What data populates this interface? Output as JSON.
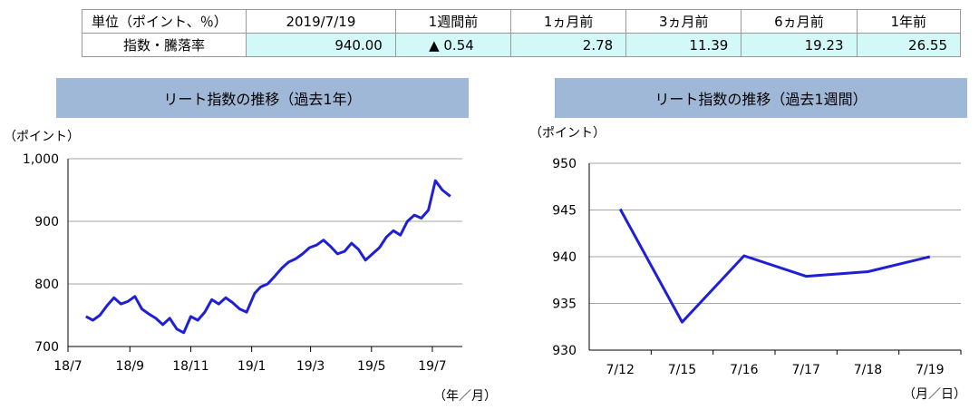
{
  "summary": {
    "unit_header": "単位（ポイント、％）",
    "columns": [
      "2019/7/19",
      "1週間前",
      "1ヵ月前",
      "3ヵ月前",
      "6ヵ月前",
      "1年前"
    ],
    "row_label": "指数・騰落率",
    "values": [
      "940.00",
      "▲ 0.54",
      "2.78",
      "11.39",
      "19.23",
      "26.55"
    ]
  },
  "colors": {
    "line": "#1f1fd6",
    "panel_title_bg": "#9fb8d8",
    "table_value_bg": "#d3f8f8",
    "grid": "#a6a6a6"
  },
  "chart_data": [
    {
      "type": "line",
      "title": "リート指数の推移（過去1年）",
      "ylabel": "（ポイント）",
      "xlabel": "（年／月）",
      "ylim": [
        700,
        1000
      ],
      "yticks": [
        "700",
        "800",
        "900",
        "1,000"
      ],
      "xticks": [
        "18/7",
        "18/9",
        "18/11",
        "19/1",
        "19/3",
        "19/5",
        "19/7"
      ],
      "series": [
        {
          "x": [
            "2018/7/19",
            "2018/7/26",
            "2018/8/2",
            "2018/8/9",
            "2018/8/16",
            "2018/8/23",
            "2018/8/30",
            "2018/9/6",
            "2018/9/13",
            "2018/9/20",
            "2018/9/27",
            "2018/10/4",
            "2018/10/11",
            "2018/10/18",
            "2018/10/25",
            "2018/11/1",
            "2018/11/8",
            "2018/11/15",
            "2018/11/22",
            "2018/11/29",
            "2018/12/6",
            "2018/12/13",
            "2018/12/20",
            "2018/12/27",
            "2019/1/4",
            "2019/1/10",
            "2019/1/17",
            "2019/1/24",
            "2019/1/31",
            "2019/2/7",
            "2019/2/14",
            "2019/2/21",
            "2019/2/28",
            "2019/3/7",
            "2019/3/14",
            "2019/3/21",
            "2019/3/28",
            "2019/4/4",
            "2019/4/11",
            "2019/4/18",
            "2019/4/25",
            "2019/5/9",
            "2019/5/16",
            "2019/5/23",
            "2019/5/30",
            "2019/6/6",
            "2019/6/13",
            "2019/6/20",
            "2019/6/27",
            "2019/7/4",
            "2019/7/11",
            "2019/7/19"
          ],
          "values": [
            748,
            742,
            750,
            765,
            778,
            768,
            772,
            780,
            760,
            752,
            745,
            735,
            745,
            728,
            722,
            748,
            742,
            755,
            775,
            768,
            778,
            770,
            760,
            755,
            785,
            795,
            800,
            812,
            825,
            835,
            840,
            848,
            858,
            862,
            870,
            860,
            848,
            852,
            865,
            855,
            838,
            858,
            875,
            885,
            878,
            900,
            910,
            905,
            918,
            965,
            950,
            940
          ]
        }
      ]
    },
    {
      "type": "line",
      "title": "リート指数の推移（過去1週間）",
      "ylabel": "（ポイント）",
      "xlabel": "（月／日）",
      "ylim": [
        930,
        950
      ],
      "yticks": [
        "930",
        "935",
        "940",
        "945",
        "950"
      ],
      "categories": [
        "7/12",
        "7/15",
        "7/16",
        "7/17",
        "7/18",
        "7/19"
      ],
      "series": [
        {
          "values": [
            945.1,
            933.0,
            940.1,
            937.9,
            938.4,
            940.0
          ]
        }
      ]
    }
  ]
}
